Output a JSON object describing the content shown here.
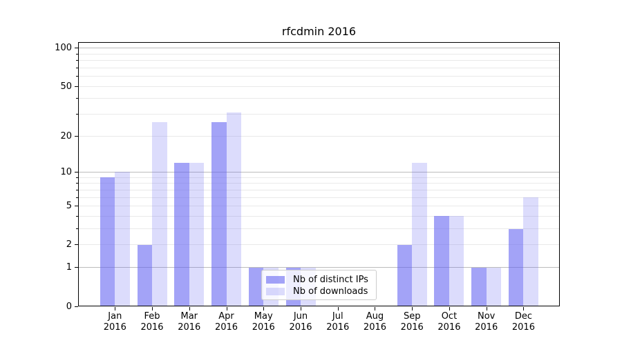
{
  "title": "rfcdmin 2016",
  "chart_data": {
    "type": "bar",
    "title": "rfcdmin 2016",
    "categories": [
      "Jan 2016",
      "Feb 2016",
      "Mar 2016",
      "Apr 2016",
      "May 2016",
      "Jun 2016",
      "Jul 2016",
      "Aug 2016",
      "Sep 2016",
      "Oct 2016",
      "Nov 2016",
      "Dec 2016"
    ],
    "month_labels": [
      "Jan",
      "Feb",
      "Mar",
      "Apr",
      "May",
      "Jun",
      "Jul",
      "Aug",
      "Sep",
      "Oct",
      "Nov",
      "Dec"
    ],
    "year_label": "2016",
    "series": [
      {
        "name": "Nb of distinct IPs",
        "color": "rgba(97,97,242,0.58)",
        "values": [
          9,
          2,
          12,
          26,
          1,
          1,
          0,
          0,
          2,
          4,
          1,
          3
        ]
      },
      {
        "name": "Nb of downloads",
        "color": "rgba(97,97,242,0.22)",
        "values": [
          10,
          26,
          12,
          31,
          1,
          1,
          0,
          0,
          12,
          4,
          1,
          6
        ]
      }
    ],
    "yscale": "log10(1+y)",
    "ylim": [
      0,
      111
    ],
    "y_tick_values": [
      0,
      1,
      2,
      5,
      10,
      20,
      50,
      100
    ],
    "y_tick_labels": [
      "0",
      "1",
      "2",
      "5",
      "10",
      "20",
      "50",
      "100"
    ],
    "major_gridlines": [
      1,
      10,
      100
    ],
    "minor_gridlines": [
      2,
      3,
      4,
      5,
      6,
      7,
      8,
      9,
      20,
      30,
      40,
      50,
      60,
      70,
      80,
      90
    ],
    "grid_major_color": "#bbbbbb",
    "grid_minor_color": "#e9e9e9",
    "legend": {
      "position": "lower-center",
      "entries": [
        "Nb of distinct IPs",
        "Nb of downloads"
      ]
    }
  }
}
